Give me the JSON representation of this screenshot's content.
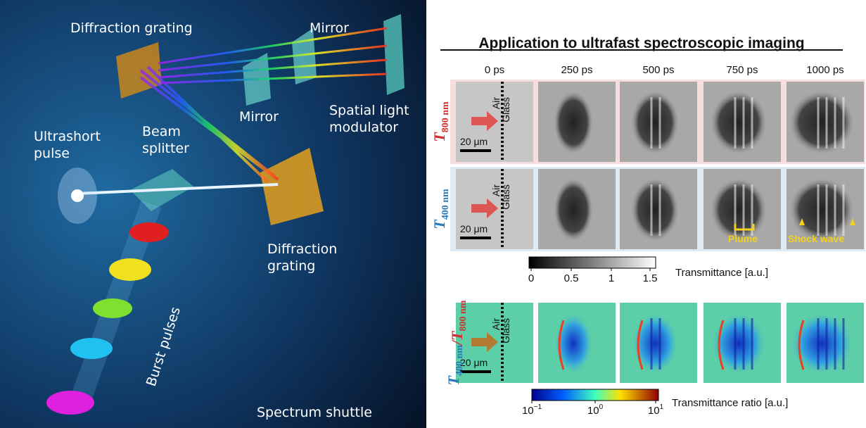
{
  "setup": {
    "labels": [
      "Diffraction grating",
      "Mirror",
      "Mirror",
      "Spatial light modulator",
      "Ultrashort pulse",
      "Beam splitter",
      "Diffraction grating",
      "Burst pulses",
      "Spectrum shuttle"
    ]
  },
  "imaging": {
    "title": "Application to ultrafast spectroscopic imaging",
    "times": [
      "0 ps",
      "250 ps",
      "500 ps",
      "750 ps",
      "1000 ps"
    ],
    "rows": [
      {
        "label": [
          {
            "symbol": "T",
            "subscript": "800 nm"
          }
        ]
      },
      {
        "label": [
          {
            "symbol": "T",
            "subscript": "400 nm"
          }
        ]
      },
      {
        "label": [
          {
            "symbol": "T",
            "subscript": "400 nm"
          },
          {
            "symbol": "/T",
            "subscript": "800 nm"
          }
        ]
      }
    ],
    "interface": [
      "Air",
      "Glass"
    ],
    "scale_bar": "20 μm",
    "annotations": [
      "Plume",
      "Shock wave"
    ],
    "colorbars": [
      {
        "ticks": [
          "0",
          "0.5",
          "1",
          "1.5"
        ],
        "label": "Transmittance [a.u.]"
      },
      {
        "ticks": [
          {
            "base": "10",
            "exponent": "−1"
          },
          {
            "base": "10",
            "exponent": "0"
          },
          {
            "base": "10",
            "exponent": "1"
          }
        ],
        "label": "Transmittance ratio [a.u.]"
      }
    ]
  }
}
